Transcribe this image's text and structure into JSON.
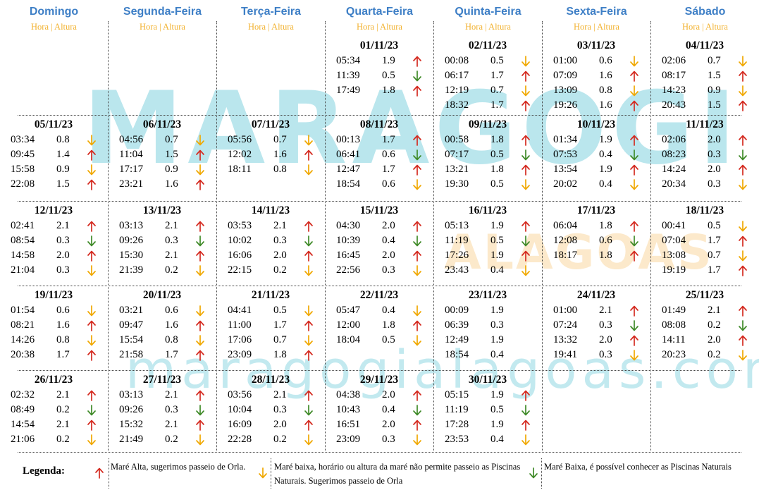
{
  "watermark": {
    "main": "MARAGOGI",
    "sub": "ALAGOAS",
    "url": "maragogialagoas.com"
  },
  "colors": {
    "day_header": "#3e7fc6",
    "sub_header": "#f2b230",
    "alta_arrow": "#d42a20",
    "baixa_yellow_arrow": "#f0a800",
    "baixa_green_arrow": "#3f8a28"
  },
  "icons": {
    "U": "arrow-up-icon",
    "Y": "arrow-down-yellow-icon",
    "G": "arrow-down-green-icon"
  },
  "days": [
    "Domingo",
    "Segunda-Feira",
    "Terça-Feira",
    "Quarta-Feira",
    "Quinta-Feira",
    "Sexta-Feira",
    "Sábado"
  ],
  "sub_header": "Hora | Altura",
  "weeks": [
    [
      null,
      null,
      null,
      {
        "date": "01/11/23",
        "tides": [
          [
            "05:34",
            "1.9",
            "U"
          ],
          [
            "11:39",
            "0.5",
            "G"
          ],
          [
            "17:49",
            "1.8",
            "U"
          ]
        ]
      },
      {
        "date": "02/11/23",
        "tides": [
          [
            "00:08",
            "0.5",
            "Y"
          ],
          [
            "06:17",
            "1.7",
            "U"
          ],
          [
            "12:19",
            "0.7",
            "Y"
          ],
          [
            "18:32",
            "1.7",
            "U"
          ]
        ]
      },
      {
        "date": "03/11/23",
        "tides": [
          [
            "01:00",
            "0.6",
            "Y"
          ],
          [
            "07:09",
            "1.6",
            "U"
          ],
          [
            "13:09",
            "0.8",
            "Y"
          ],
          [
            "19:26",
            "1.6",
            "U"
          ]
        ]
      },
      {
        "date": "04/11/23",
        "tides": [
          [
            "02:06",
            "0.7",
            "Y"
          ],
          [
            "08:17",
            "1.5",
            "U"
          ],
          [
            "14:23",
            "0.9",
            "Y"
          ],
          [
            "20:43",
            "1.5",
            "U"
          ]
        ]
      }
    ],
    [
      {
        "date": "05/11/23",
        "tides": [
          [
            "03:34",
            "0.8",
            "Y"
          ],
          [
            "09:45",
            "1.4",
            "U"
          ],
          [
            "15:58",
            "0.9",
            "Y"
          ],
          [
            "22:08",
            "1.5",
            "U"
          ]
        ]
      },
      {
        "date": "06/11/23",
        "tides": [
          [
            "04:56",
            "0.7",
            "Y"
          ],
          [
            "11:04",
            "1.5",
            "U"
          ],
          [
            "17:17",
            "0.9",
            "Y"
          ],
          [
            "23:21",
            "1.6",
            "U"
          ]
        ]
      },
      {
        "date": "07/11/23",
        "tides": [
          [
            "05:56",
            "0.7",
            "Y"
          ],
          [
            "12:02",
            "1.6",
            "U"
          ],
          [
            "18:11",
            "0.8",
            "Y"
          ]
        ]
      },
      {
        "date": "08/11/23",
        "tides": [
          [
            "00:13",
            "1.7",
            "U"
          ],
          [
            "06:41",
            "0.6",
            "G"
          ],
          [
            "12:47",
            "1.7",
            "U"
          ],
          [
            "18:54",
            "0.6",
            "Y"
          ]
        ]
      },
      {
        "date": "09/11/23",
        "tides": [
          [
            "00:58",
            "1.8",
            "U"
          ],
          [
            "07:17",
            "0.5",
            "G"
          ],
          [
            "13:21",
            "1.8",
            "U"
          ],
          [
            "19:30",
            "0.5",
            "Y"
          ]
        ]
      },
      {
        "date": "10/11/23",
        "tides": [
          [
            "01:34",
            "1.9",
            "U"
          ],
          [
            "07:53",
            "0.4",
            "G"
          ],
          [
            "13:54",
            "1.9",
            "U"
          ],
          [
            "20:02",
            "0.4",
            "Y"
          ]
        ]
      },
      {
        "date": "11/11/23",
        "tides": [
          [
            "02:06",
            "2.0",
            "U"
          ],
          [
            "08:23",
            "0.3",
            "G"
          ],
          [
            "14:24",
            "2.0",
            "U"
          ],
          [
            "20:34",
            "0.3",
            "Y"
          ]
        ]
      }
    ],
    [
      {
        "date": "12/11/23",
        "tides": [
          [
            "02:41",
            "2.1",
            "U"
          ],
          [
            "08:54",
            "0.3",
            "G"
          ],
          [
            "14:58",
            "2.0",
            "U"
          ],
          [
            "21:04",
            "0.3",
            "Y"
          ]
        ]
      },
      {
        "date": "13/11/23",
        "tides": [
          [
            "03:13",
            "2.1",
            "U"
          ],
          [
            "09:26",
            "0.3",
            "G"
          ],
          [
            "15:30",
            "2.1",
            "U"
          ],
          [
            "21:39",
            "0.2",
            "Y"
          ]
        ]
      },
      {
        "date": "14/11/23",
        "tides": [
          [
            "03:53",
            "2.1",
            "U"
          ],
          [
            "10:02",
            "0.3",
            "G"
          ],
          [
            "16:06",
            "2.0",
            "U"
          ],
          [
            "22:15",
            "0.2",
            "Y"
          ]
        ]
      },
      {
        "date": "15/11/23",
        "tides": [
          [
            "04:30",
            "2.0",
            "U"
          ],
          [
            "10:39",
            "0.4",
            "G"
          ],
          [
            "16:45",
            "2.0",
            "U"
          ],
          [
            "22:56",
            "0.3",
            "Y"
          ]
        ]
      },
      {
        "date": "16/11/23",
        "tides": [
          [
            "05:13",
            "1.9",
            "U"
          ],
          [
            "11:19",
            "0.5",
            "G"
          ],
          [
            "17:26",
            "1.9",
            "U"
          ],
          [
            "23:43",
            "0.4",
            "Y"
          ]
        ]
      },
      {
        "date": "17/11/23",
        "tides": [
          [
            "06:04",
            "1.8",
            "U"
          ],
          [
            "12:08",
            "0.6",
            "G"
          ],
          [
            "18:17",
            "1.8",
            "U"
          ]
        ]
      },
      {
        "date": "18/11/23",
        "tides": [
          [
            "00:41",
            "0.5",
            "Y"
          ],
          [
            "07:04",
            "1.7",
            "U"
          ],
          [
            "13:08",
            "0.7",
            "Y"
          ],
          [
            "19:19",
            "1.7",
            "U"
          ]
        ]
      }
    ],
    [
      {
        "date": "19/11/23",
        "tides": [
          [
            "01:54",
            "0.6",
            "Y"
          ],
          [
            "08:21",
            "1.6",
            "U"
          ],
          [
            "14:26",
            "0.8",
            "Y"
          ],
          [
            "20:38",
            "1.7",
            "U"
          ]
        ]
      },
      {
        "date": "20/11/23",
        "tides": [
          [
            "03:21",
            "0.6",
            "Y"
          ],
          [
            "09:47",
            "1.6",
            "U"
          ],
          [
            "15:54",
            "0.8",
            "Y"
          ],
          [
            "21:58",
            "1.7",
            "U"
          ]
        ]
      },
      {
        "date": "21/11/23",
        "tides": [
          [
            "04:41",
            "0.5",
            "Y"
          ],
          [
            "11:00",
            "1.7",
            "U"
          ],
          [
            "17:06",
            "0.7",
            "Y"
          ],
          [
            "23:09",
            "1.8",
            "U"
          ]
        ]
      },
      {
        "date": "22/11/23",
        "tides": [
          [
            "05:47",
            "0.4",
            "Y"
          ],
          [
            "12:00",
            "1.8",
            "U"
          ],
          [
            "18:04",
            "0.5",
            "Y"
          ]
        ]
      },
      {
        "date": "23/11/23",
        "tides": [
          [
            "00:09",
            "1.9",
            ""
          ],
          [
            "06:39",
            "0.3",
            ""
          ],
          [
            "12:49",
            "1.9",
            ""
          ],
          [
            "18:54",
            "0.4",
            ""
          ]
        ]
      },
      {
        "date": "24/11/23",
        "tides": [
          [
            "01:00",
            "2.1",
            "U"
          ],
          [
            "07:24",
            "0.3",
            "G"
          ],
          [
            "13:32",
            "2.0",
            "U"
          ],
          [
            "19:41",
            "0.3",
            "Y"
          ]
        ]
      },
      {
        "date": "25/11/23",
        "tides": [
          [
            "01:49",
            "2.1",
            "U"
          ],
          [
            "08:08",
            "0.2",
            "G"
          ],
          [
            "14:11",
            "2.0",
            "U"
          ],
          [
            "20:23",
            "0.2",
            "Y"
          ]
        ]
      }
    ],
    [
      {
        "date": "26/11/23",
        "tides": [
          [
            "02:32",
            "2.1",
            "U"
          ],
          [
            "08:49",
            "0.2",
            "G"
          ],
          [
            "14:54",
            "2.1",
            "U"
          ],
          [
            "21:06",
            "0.2",
            "Y"
          ]
        ]
      },
      {
        "date": "27/11/23",
        "tides": [
          [
            "03:13",
            "2.1",
            "U"
          ],
          [
            "09:26",
            "0.3",
            "G"
          ],
          [
            "15:32",
            "2.1",
            "U"
          ],
          [
            "21:49",
            "0.2",
            "Y"
          ]
        ]
      },
      {
        "date": "28/11/23",
        "tides": [
          [
            "03:56",
            "2.1",
            "U"
          ],
          [
            "10:04",
            "0.3",
            "G"
          ],
          [
            "16:09",
            "2.0",
            "U"
          ],
          [
            "22:28",
            "0.2",
            "Y"
          ]
        ]
      },
      {
        "date": "29/11/23",
        "tides": [
          [
            "04:38",
            "2.0",
            "U"
          ],
          [
            "10:43",
            "0.4",
            "G"
          ],
          [
            "16:51",
            "2.0",
            "U"
          ],
          [
            "23:09",
            "0.3",
            "Y"
          ]
        ]
      },
      {
        "date": "30/11/23",
        "tides": [
          [
            "05:15",
            "1.9",
            "U"
          ],
          [
            "11:19",
            "0.5",
            "G"
          ],
          [
            "17:28",
            "1.9",
            "U"
          ],
          [
            "23:53",
            "0.4",
            "Y"
          ]
        ]
      },
      null,
      null
    ]
  ],
  "legend": {
    "title": "Legenda:",
    "items": [
      {
        "icon": "U",
        "text": "Maré Alta, sugerimos passeio de Orla."
      },
      {
        "icon": "Y",
        "text": "Maré baixa, horário ou altura da maré não permite passeio as Piscinas Naturais. Sugerimos passeio de Orla"
      },
      {
        "icon": "G",
        "text": "Maré Baixa, é possível conhecer as Piscinas Naturais"
      }
    ]
  }
}
